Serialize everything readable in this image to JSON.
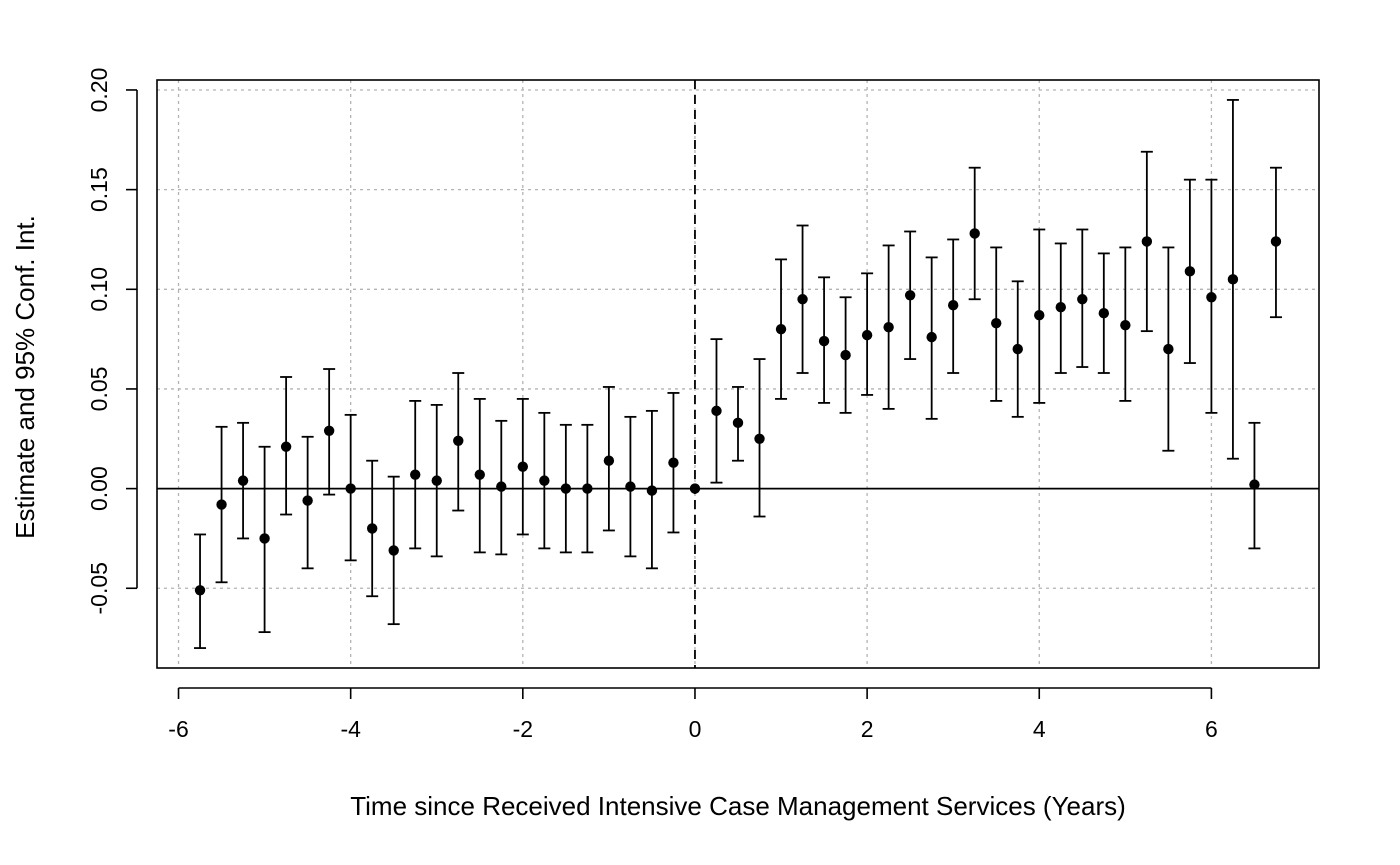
{
  "chart_data": {
    "type": "scatter",
    "title": "",
    "xlabel": "Time since Received Intensive Case Management Services (Years)",
    "ylabel": "Estimate and 95% Conf. Int.",
    "xlim": [
      -6.25,
      7.25
    ],
    "ylim": [
      -0.09,
      0.205
    ],
    "x_ticks": [
      -6,
      -4,
      -2,
      0,
      2,
      4,
      6
    ],
    "x_tick_labels": [
      "-6",
      "-4",
      "-2",
      "0",
      "2",
      "4",
      "6"
    ],
    "y_ticks": [
      -0.05,
      0.0,
      0.05,
      0.1,
      0.15,
      0.2
    ],
    "y_tick_labels": [
      "-0.05",
      "0.00",
      "0.05",
      "0.10",
      "0.15",
      "0.20"
    ],
    "grid": true,
    "reference_lines": {
      "horizontal_y": 0,
      "vertical_x": 0
    },
    "marker_color": "#000000",
    "grid_color": "#b3b3b3",
    "series": [
      {
        "points": [
          {
            "x": -5.75,
            "y": -0.051,
            "lo": -0.08,
            "hi": -0.023
          },
          {
            "x": -5.5,
            "y": -0.008,
            "lo": -0.047,
            "hi": 0.031
          },
          {
            "x": -5.25,
            "y": 0.004,
            "lo": -0.025,
            "hi": 0.033
          },
          {
            "x": -5.0,
            "y": -0.025,
            "lo": -0.072,
            "hi": 0.021
          },
          {
            "x": -4.75,
            "y": 0.021,
            "lo": -0.013,
            "hi": 0.056
          },
          {
            "x": -4.5,
            "y": -0.006,
            "lo": -0.04,
            "hi": 0.026
          },
          {
            "x": -4.25,
            "y": 0.029,
            "lo": -0.003,
            "hi": 0.06
          },
          {
            "x": -4.0,
            "y": 0.0,
            "lo": -0.036,
            "hi": 0.037
          },
          {
            "x": -3.75,
            "y": -0.02,
            "lo": -0.054,
            "hi": 0.014
          },
          {
            "x": -3.5,
            "y": -0.031,
            "lo": -0.068,
            "hi": 0.006
          },
          {
            "x": -3.25,
            "y": 0.007,
            "lo": -0.03,
            "hi": 0.044
          },
          {
            "x": -3.0,
            "y": 0.004,
            "lo": -0.034,
            "hi": 0.042
          },
          {
            "x": -2.75,
            "y": 0.024,
            "lo": -0.011,
            "hi": 0.058
          },
          {
            "x": -2.5,
            "y": 0.007,
            "lo": -0.032,
            "hi": 0.045
          },
          {
            "x": -2.25,
            "y": 0.001,
            "lo": -0.033,
            "hi": 0.034
          },
          {
            "x": -2.0,
            "y": 0.011,
            "lo": -0.023,
            "hi": 0.045
          },
          {
            "x": -1.75,
            "y": 0.004,
            "lo": -0.03,
            "hi": 0.038
          },
          {
            "x": -1.5,
            "y": 0.0,
            "lo": -0.032,
            "hi": 0.032
          },
          {
            "x": -1.25,
            "y": 0.0,
            "lo": -0.032,
            "hi": 0.032
          },
          {
            "x": -1.0,
            "y": 0.014,
            "lo": -0.021,
            "hi": 0.051
          },
          {
            "x": -0.75,
            "y": 0.001,
            "lo": -0.034,
            "hi": 0.036
          },
          {
            "x": -0.5,
            "y": -0.001,
            "lo": -0.04,
            "hi": 0.039
          },
          {
            "x": -0.25,
            "y": 0.013,
            "lo": -0.022,
            "hi": 0.048
          },
          {
            "x": 0.0,
            "y": 0.0,
            "lo": 0.0,
            "hi": 0.0
          },
          {
            "x": 0.25,
            "y": 0.039,
            "lo": 0.003,
            "hi": 0.075
          },
          {
            "x": 0.5,
            "y": 0.033,
            "lo": 0.014,
            "hi": 0.051
          },
          {
            "x": 0.75,
            "y": 0.025,
            "lo": -0.014,
            "hi": 0.065
          },
          {
            "x": 1.0,
            "y": 0.08,
            "lo": 0.045,
            "hi": 0.115
          },
          {
            "x": 1.25,
            "y": 0.095,
            "lo": 0.058,
            "hi": 0.132
          },
          {
            "x": 1.5,
            "y": 0.074,
            "lo": 0.043,
            "hi": 0.106
          },
          {
            "x": 1.75,
            "y": 0.067,
            "lo": 0.038,
            "hi": 0.096
          },
          {
            "x": 2.0,
            "y": 0.077,
            "lo": 0.047,
            "hi": 0.108
          },
          {
            "x": 2.25,
            "y": 0.081,
            "lo": 0.04,
            "hi": 0.122
          },
          {
            "x": 2.5,
            "y": 0.097,
            "lo": 0.065,
            "hi": 0.129
          },
          {
            "x": 2.75,
            "y": 0.076,
            "lo": 0.035,
            "hi": 0.116
          },
          {
            "x": 3.0,
            "y": 0.092,
            "lo": 0.058,
            "hi": 0.125
          },
          {
            "x": 3.25,
            "y": 0.128,
            "lo": 0.095,
            "hi": 0.161
          },
          {
            "x": 3.5,
            "y": 0.083,
            "lo": 0.044,
            "hi": 0.121
          },
          {
            "x": 3.75,
            "y": 0.07,
            "lo": 0.036,
            "hi": 0.104
          },
          {
            "x": 4.0,
            "y": 0.087,
            "lo": 0.043,
            "hi": 0.13
          },
          {
            "x": 4.25,
            "y": 0.091,
            "lo": 0.058,
            "hi": 0.123
          },
          {
            "x": 4.5,
            "y": 0.095,
            "lo": 0.061,
            "hi": 0.13
          },
          {
            "x": 4.75,
            "y": 0.088,
            "lo": 0.058,
            "hi": 0.118
          },
          {
            "x": 5.0,
            "y": 0.082,
            "lo": 0.044,
            "hi": 0.121
          },
          {
            "x": 5.25,
            "y": 0.124,
            "lo": 0.079,
            "hi": 0.169
          },
          {
            "x": 5.5,
            "y": 0.07,
            "lo": 0.019,
            "hi": 0.121
          },
          {
            "x": 5.75,
            "y": 0.109,
            "lo": 0.063,
            "hi": 0.155
          },
          {
            "x": 6.0,
            "y": 0.096,
            "lo": 0.038,
            "hi": 0.155
          },
          {
            "x": 6.25,
            "y": 0.105,
            "lo": 0.015,
            "hi": 0.195
          },
          {
            "x": 6.5,
            "y": 0.002,
            "lo": -0.03,
            "hi": 0.033
          },
          {
            "x": 6.75,
            "y": 0.124,
            "lo": 0.086,
            "hi": 0.161
          }
        ]
      }
    ]
  }
}
